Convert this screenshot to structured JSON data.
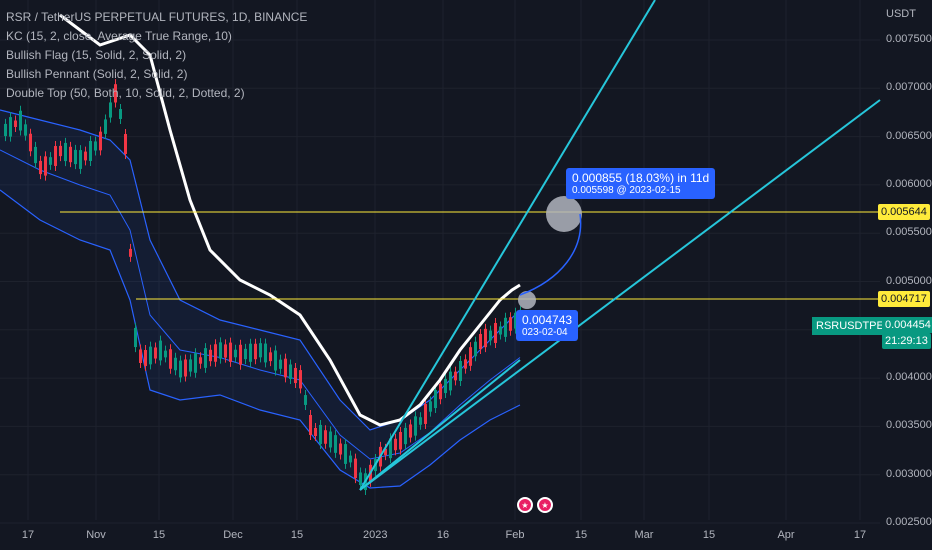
{
  "legend": {
    "title": "RSR / TetherUS PERPETUAL FUTURES, 1D, BINANCE",
    "indicators": [
      "KC (15, 2, close, Average True Range, 10)",
      "Bullish Flag (15, Solid, 2, Solid, 2)",
      "Bullish Pennant (Solid, 2, Solid, 2)",
      "Double Top (50, Both, 10, Solid, 2, Dotted, 2)"
    ]
  },
  "axis": {
    "currency": "USDT",
    "price_ticks": [
      "0.007500",
      "0.007000",
      "0.006500",
      "0.006000",
      "0.005500",
      "0.005000",
      "0.004500",
      "0.004000",
      "0.003500",
      "0.003000",
      "0.002500"
    ],
    "time_ticks": [
      "17",
      "Nov",
      "15",
      "Dec",
      "15",
      "2023",
      "16",
      "Feb",
      "15",
      "Mar",
      "15",
      "Apr",
      "17"
    ]
  },
  "tags": {
    "level_high": "0.005644",
    "level_low": "0.004717",
    "ticker": "RSRUSDTPERP",
    "last_price": "0.004454",
    "countdown": "21:29:13"
  },
  "callouts": {
    "target_main": "0.000855 (18.03%) in 11d",
    "target_sub": "0.005598 @ 2023-02-15",
    "point_main": "0.004743",
    "point_sub": "023-02-04"
  },
  "colors": {
    "background": "#131722",
    "up": "#089981",
    "down": "#f23645",
    "trendline": "#26c6da",
    "level": "#ffeb3b",
    "ma": "#ffffff",
    "band": "#2962ff"
  },
  "chart_data": {
    "type": "line",
    "title": "RSR / TetherUS PERPETUAL FUTURES, 1D, BINANCE",
    "y_range": [
      0.0025,
      0.0078
    ],
    "x": [
      "2022-10-17",
      "2022-11-01",
      "2022-11-15",
      "2022-12-01",
      "2022-12-15",
      "2023-01-01",
      "2023-01-16",
      "2023-02-01"
    ],
    "series": [
      {
        "name": "KC (15, 2, close, Average True Range, 10)",
        "values": [
          0.0062,
          0.0058,
          0.004,
          0.0041,
          0.004,
          0.0031,
          0.0036,
          0.0043
        ]
      }
    ],
    "horizontal_levels": [
      0.005644,
      0.004717
    ],
    "last_price": 0.004454
  }
}
